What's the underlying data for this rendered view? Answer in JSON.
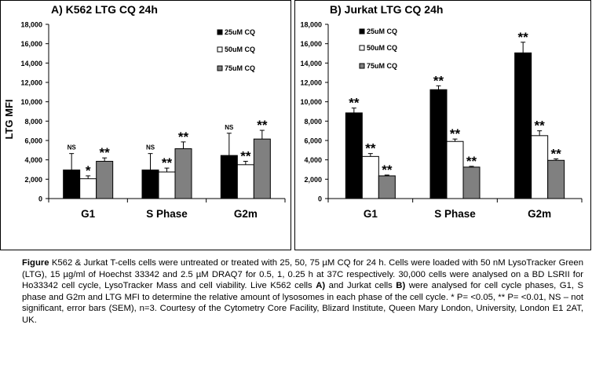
{
  "chart_data": [
    {
      "type": "bar",
      "title": "A) K562 LTG CQ  24h",
      "ylabel": "LTG MFI",
      "categories": [
        "G1",
        "S Phase",
        "G2m"
      ],
      "ylim": [
        0,
        18000
      ],
      "yticks": [
        "0",
        "2,000",
        "4,000",
        "6,000",
        "8,000",
        "10,000",
        "12,000",
        "14,000",
        "16,000",
        "18,000"
      ],
      "series": [
        {
          "name": "25uM CQ",
          "color": "#000000",
          "values": [
            2950,
            2950,
            4450
          ],
          "error": [
            1700,
            1700,
            2300
          ],
          "significance": [
            "NS",
            "NS",
            "NS"
          ]
        },
        {
          "name": "50uM CQ",
          "color": "#ffffff",
          "values": [
            2050,
            2750,
            3500
          ],
          "error": [
            300,
            400,
            350
          ],
          "significance": [
            "*",
            "**",
            "**"
          ]
        },
        {
          "name": "75uM CQ",
          "color": "#808080",
          "values": [
            3850,
            5150,
            6150
          ],
          "error": [
            350,
            700,
            900
          ],
          "significance": [
            "**",
            "**",
            "**"
          ]
        }
      ]
    },
    {
      "type": "bar",
      "title": "B) Jurkat LTG CQ  24h",
      "ylabel": "",
      "categories": [
        "G1",
        "S Phase",
        "G2m"
      ],
      "ylim": [
        0,
        18000
      ],
      "yticks": [
        "0",
        "2,000",
        "4,000",
        "6,000",
        "8,000",
        "10,000",
        "12,000",
        "14,000",
        "16,000",
        "18,000"
      ],
      "series": [
        {
          "name": "25uM CQ",
          "color": "#000000",
          "values": [
            8850,
            11250,
            15050
          ],
          "error": [
            500,
            400,
            1100
          ],
          "significance": [
            "**",
            "**",
            "**"
          ]
        },
        {
          "name": "50uM CQ",
          "color": "#ffffff",
          "values": [
            4350,
            5900,
            6500
          ],
          "error": [
            300,
            250,
            500
          ],
          "significance": [
            "**",
            "**",
            "**"
          ]
        },
        {
          "name": "75uM CQ",
          "color": "#808080",
          "values": [
            2350,
            3250,
            3950
          ],
          "error": [
            80,
            80,
            150
          ],
          "significance": [
            "**",
            "**",
            "**"
          ]
        }
      ]
    }
  ],
  "caption": {
    "figure_label": "Figure",
    "p1": " K562 & Jurkat T-cells cells were untreated or treated with 25, 50, 75 µM CQ for 24 h. Cells were loaded with 50 nM LysoTracker Green (LTG), 15 µg/ml of Hoechst 33342 and 2.5 µM DRAQ7 for 0.5, 1, 0.25 h at 37C respectively. 30,000 cells were analysed on a BD LSRII for Ho33342 cell cycle, LysoTracker Mass and cell viability. Live K562 cells ",
    "a_label": "A)",
    "p2": " and Jurkat  cells ",
    "b_label": "B)",
    "p3": " were analysed for cell cycle phases, G1, S phase and G2m and LTG MFI to determine the relative amount of lysosomes in each phase of the cell cycle. * P= <0.05, ** P= <0.01, NS – not significant, error bars (SEM), n=3. Courtesy of the Cytometry Core Facility, Blizard Institute, Queen Mary London, University, London E1 2AT, UK."
  }
}
